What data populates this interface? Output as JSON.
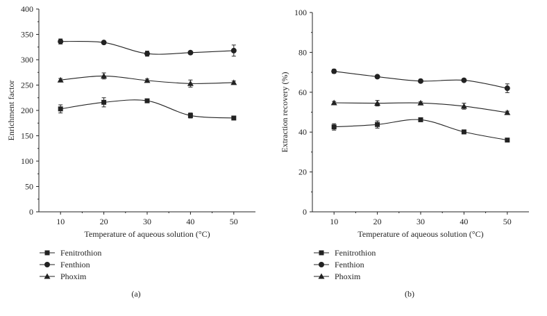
{
  "colors": {
    "ink": "#222222",
    "background": "#ffffff"
  },
  "chart_data": [
    {
      "type": "line",
      "panel_label": "(a)",
      "title": "",
      "xlabel": "Temperature of aqueous solution (°C)",
      "ylabel": "Enrichment factor",
      "xlim": [
        5,
        55
      ],
      "ylim": [
        0,
        400
      ],
      "xticks": [
        "10",
        "20",
        "30",
        "40",
        "50"
      ],
      "yticks": [
        "0",
        "50",
        "100",
        "150",
        "200",
        "250",
        "300",
        "350",
        "400"
      ],
      "x": [
        10,
        20,
        30,
        40,
        50
      ],
      "series": [
        {
          "name": "Fenitrothion",
          "marker": "square",
          "values": [
            203,
            216,
            219,
            190,
            185
          ],
          "errors": [
            8,
            9,
            3,
            5,
            3
          ]
        },
        {
          "name": "Fenthion",
          "marker": "circle",
          "values": [
            336,
            334,
            312,
            314,
            318
          ],
          "errors": [
            5,
            3,
            5,
            3,
            11
          ]
        },
        {
          "name": "Phoxim",
          "marker": "triangle",
          "values": [
            260,
            268,
            259,
            253,
            255
          ],
          "errors": [
            3,
            6,
            3,
            7,
            3
          ]
        }
      ],
      "legend": "below"
    },
    {
      "type": "line",
      "panel_label": "(b)",
      "title": "",
      "xlabel": "Temperature of aqueous solution (°C)",
      "ylabel": "Extraction recovery (%)",
      "xlim": [
        5,
        55
      ],
      "ylim": [
        0,
        100
      ],
      "xticks": [
        "10",
        "20",
        "30",
        "40",
        "50"
      ],
      "yticks": [
        "0",
        "20",
        "40",
        "60",
        "80",
        "100"
      ],
      "x": [
        10,
        20,
        30,
        40,
        50
      ],
      "series": [
        {
          "name": "Fenitrothion",
          "marker": "square",
          "values": [
            42.6,
            43.8,
            46.2,
            40.1,
            36.0
          ],
          "errors": [
            1.6,
            1.8,
            0.7,
            1.0,
            0.6
          ]
        },
        {
          "name": "Fenthion",
          "marker": "circle",
          "values": [
            70.5,
            67.8,
            65.6,
            66.0,
            62.0
          ],
          "errors": [
            1.0,
            0.6,
            0.8,
            0.6,
            2.2
          ]
        },
        {
          "name": "Phoxim",
          "marker": "triangle",
          "values": [
            54.7,
            54.5,
            54.6,
            53.0,
            49.8
          ],
          "errors": [
            0.7,
            1.4,
            0.6,
            1.5,
            0.7
          ]
        }
      ],
      "legend": "below"
    }
  ]
}
